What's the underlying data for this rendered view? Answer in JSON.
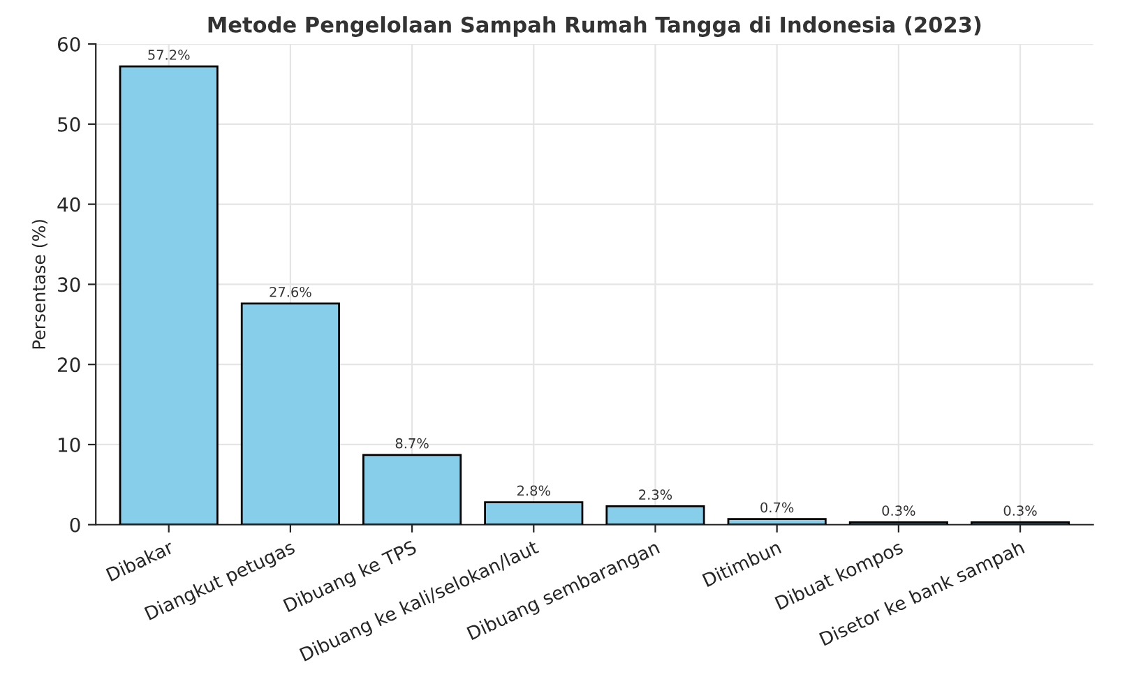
{
  "chart_data": {
    "type": "bar",
    "title": "Metode Pengelolaan Sampah Rumah Tangga di Indonesia (2023)",
    "ylabel": "Persentase (%)",
    "categories": [
      "Dibakar",
      "Diangkut petugas",
      "Dibuang ke TPS",
      "Dibuang ke kali/selokan/laut",
      "Dibuang sembarangan",
      "Ditimbun",
      "Dibuat kompos",
      "Disetor ke bank sampah"
    ],
    "values": [
      57.2,
      27.6,
      8.7,
      2.8,
      2.3,
      0.7,
      0.3,
      0.3
    ],
    "value_labels": [
      "57.2%",
      "27.6%",
      "8.7%",
      "2.8%",
      "2.3%",
      "0.7%",
      "0.3%",
      "0.3%"
    ],
    "color": "#87ceeb",
    "ylim": [
      0,
      60
    ],
    "yticks": [
      0,
      10,
      20,
      30,
      40,
      50,
      60
    ],
    "grid": true
  }
}
